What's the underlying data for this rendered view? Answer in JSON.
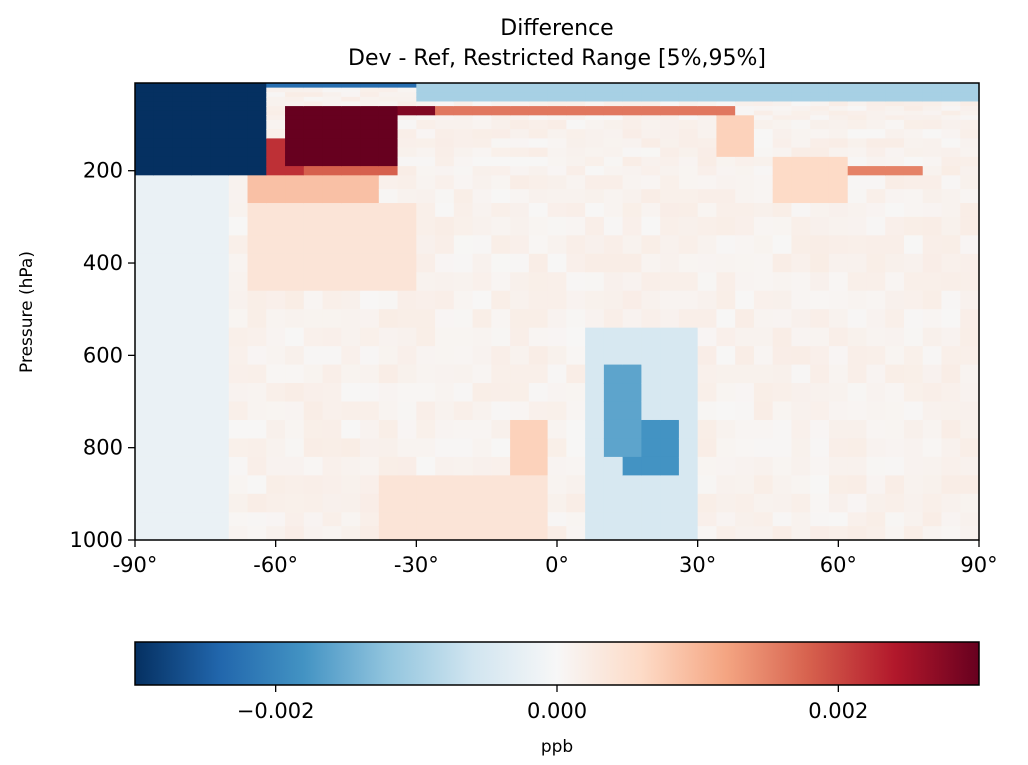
{
  "chart_data": {
    "type": "heatmap",
    "title": "Difference",
    "subtitle": "Dev - Ref, Restricted Range [5%,95%]",
    "xlabel": "",
    "ylabel": "Pressure (hPa)",
    "x_ticks": [
      "-90°",
      "-60°",
      "-30°",
      "0°",
      "30°",
      "60°",
      "90°"
    ],
    "x_tick_values": [
      -90,
      -60,
      -30,
      0,
      30,
      60,
      90
    ],
    "y_ticks": [
      "200",
      "400",
      "600",
      "800",
      "1000"
    ],
    "y_tick_values": [
      200,
      400,
      600,
      800,
      1000
    ],
    "xlim": [
      -90,
      90
    ],
    "ylim": [
      1000,
      10
    ],
    "colormap": "RdBu_r",
    "colorbar": {
      "label": "ppb",
      "range": [
        -0.003,
        0.003
      ],
      "ticks": [
        "−0.002",
        "0.000",
        "0.002"
      ],
      "tick_values": [
        -0.002,
        0.0,
        0.002
      ],
      "orientation": "horizontal"
    },
    "lat_edges": [
      -90,
      -86,
      -82,
      -78,
      -74,
      -70,
      -66,
      -62,
      -58,
      -54,
      -50,
      -46,
      -42,
      -38,
      -34,
      -30,
      -26,
      -22,
      -18,
      -14,
      -10,
      -6,
      -2,
      2,
      6,
      10,
      14,
      18,
      22,
      26,
      30,
      34,
      38,
      42,
      46,
      50,
      54,
      58,
      62,
      66,
      70,
      74,
      78,
      82,
      86,
      90
    ],
    "pressure_edges": [
      10,
      20,
      30,
      40,
      50,
      60,
      70,
      80,
      90,
      110,
      130,
      150,
      170,
      190,
      210,
      240,
      270,
      300,
      340,
      380,
      420,
      460,
      500,
      540,
      580,
      620,
      660,
      700,
      740,
      780,
      820,
      860,
      900,
      940,
      970,
      1000
    ],
    "features": [
      {
        "lat": [
          -90,
          -62
        ],
        "p": [
          10,
          200
        ],
        "value": -0.0032
      },
      {
        "lat": [
          -58,
          -34
        ],
        "p": [
          60,
          180
        ],
        "value": 0.0032
      },
      {
        "lat": [
          -62,
          -56
        ],
        "p": [
          140,
          200
        ],
        "value": 0.0022
      },
      {
        "lat": [
          -38,
          -34
        ],
        "p": [
          150,
          200
        ],
        "value": 0.0018
      },
      {
        "lat": [
          -62,
          -36
        ],
        "p": [
          180,
          210
        ],
        "value": 0.0018
      },
      {
        "lat": [
          -66,
          -38
        ],
        "p": [
          210,
          270
        ],
        "value": 0.0009
      },
      {
        "lat": [
          -66,
          -30
        ],
        "p": [
          270,
          450
        ],
        "value": 0.0004
      },
      {
        "lat": [
          -34,
          -26
        ],
        "p": [
          60,
          80
        ],
        "value": 0.0028
      },
      {
        "lat": [
          -26,
          38
        ],
        "p": [
          60,
          80
        ],
        "value": 0.0016
      },
      {
        "lat": [
          34,
          42
        ],
        "p": [
          80,
          170
        ],
        "value": 0.0007
      },
      {
        "lat": [
          46,
          62
        ],
        "p": [
          170,
          270
        ],
        "value": 0.0006
      },
      {
        "lat": [
          62,
          78
        ],
        "p": [
          190,
          210
        ],
        "value": 0.0015
      },
      {
        "lat": [
          70,
          74
        ],
        "p": [
          190,
          210
        ],
        "value": 0.0021
      },
      {
        "lat": [
          -30,
          90
        ],
        "p": [
          10,
          50
        ],
        "value": -0.001
      },
      {
        "lat": [
          -66,
          90
        ],
        "p": [
          10,
          20
        ],
        "value": -0.0023
      },
      {
        "lat": [
          10,
          18
        ],
        "p": [
          620,
          820
        ],
        "value": -0.0016
      },
      {
        "lat": [
          14,
          26
        ],
        "p": [
          740,
          860
        ],
        "value": -0.0018
      },
      {
        "lat": [
          6,
          30
        ],
        "p": [
          540,
          1000
        ],
        "value": -0.0005
      },
      {
        "lat": [
          -10,
          -2
        ],
        "p": [
          740,
          860
        ],
        "value": 0.0007
      },
      {
        "lat": [
          -38,
          -2
        ],
        "p": [
          860,
          1000
        ],
        "value": 0.0004
      },
      {
        "lat": [
          -90,
          -70
        ],
        "p": [
          200,
          1000
        ],
        "value": -0.0002
      }
    ]
  }
}
